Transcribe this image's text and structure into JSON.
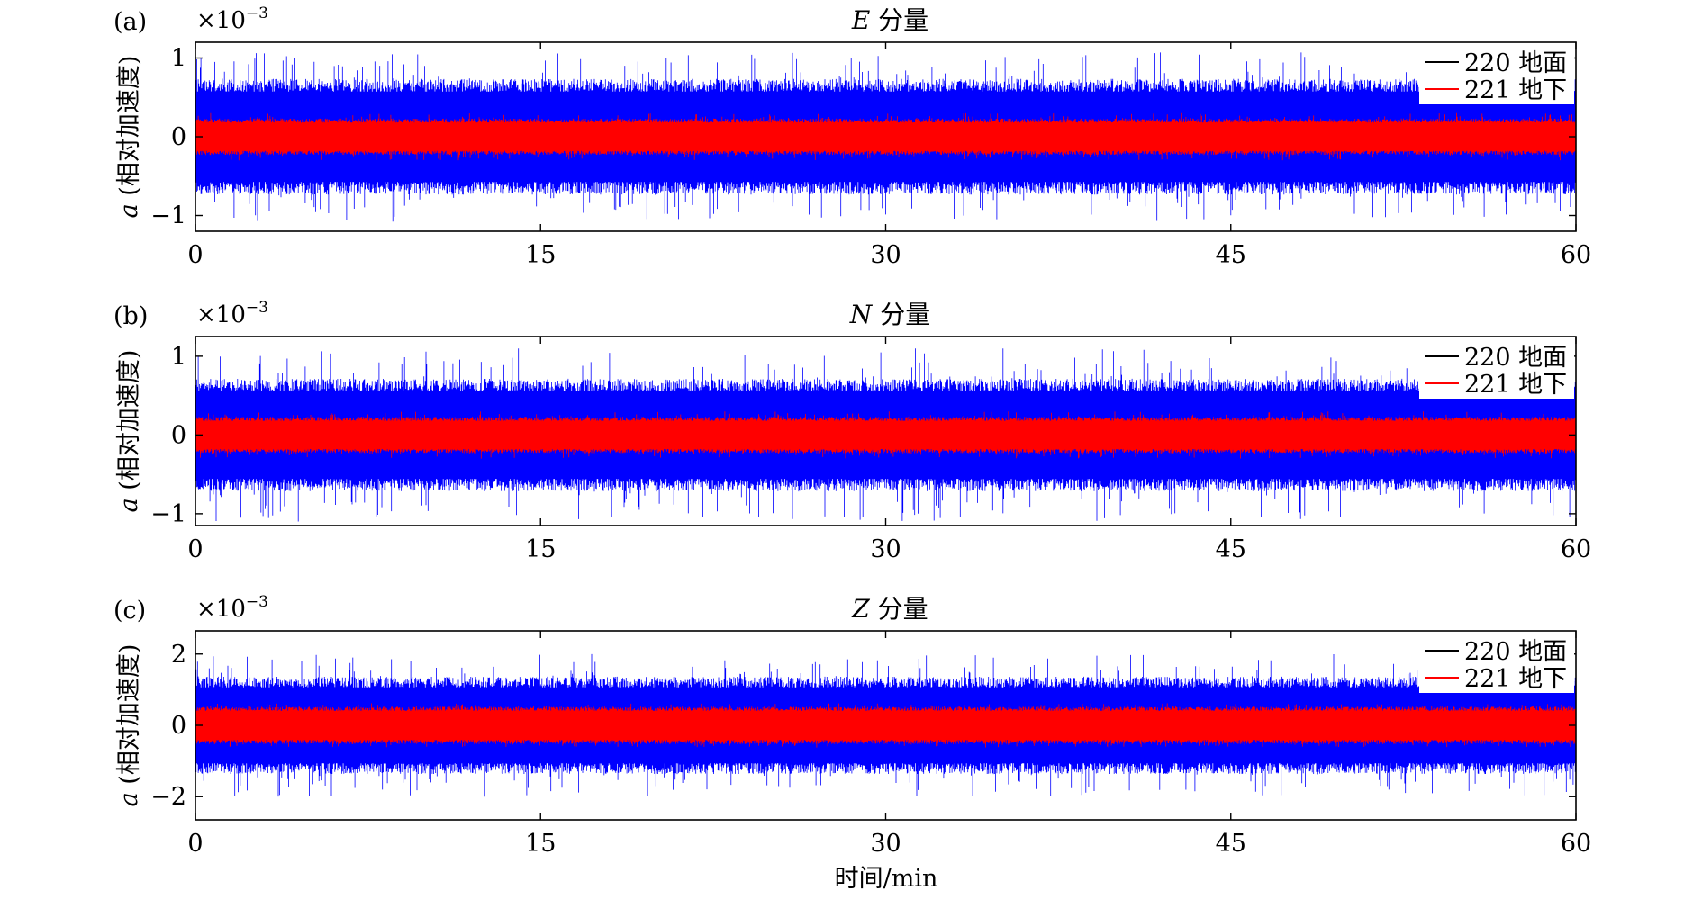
{
  "figure": {
    "xlabel": "时间/min"
  },
  "chart_data": [
    {
      "panel_label": "(a)",
      "title_italic": "E",
      "title_rest": "分量",
      "type": "line",
      "x_range": [
        0,
        60
      ],
      "x_ticks": [
        "0",
        "15",
        "30",
        "45",
        "60"
      ],
      "ylim": [
        -1.2,
        1.2
      ],
      "y_ticks": [
        1,
        0,
        -1
      ],
      "y_tick_labels": [
        "1",
        "0",
        "−1"
      ],
      "y_exponent_label": "×10",
      "y_exponent_power": "−3",
      "ylabel_italic": "a",
      "ylabel_rest": "(相对加速度)",
      "legend_position": "top-right",
      "series": [
        {
          "name": "220 地面",
          "color": "#0000ff",
          "legend_color": "#000000",
          "typical_amplitude": 0.7,
          "peak_amplitude": 1.08
        },
        {
          "name": "221 地下",
          "color": "#ff0000",
          "legend_color": "#ff0000",
          "typical_amplitude": 0.22,
          "peak_amplitude": 0.3
        }
      ]
    },
    {
      "panel_label": "(b)",
      "title_italic": "N",
      "title_rest": "分量",
      "type": "line",
      "x_range": [
        0,
        60
      ],
      "x_ticks": [
        "0",
        "15",
        "30",
        "45",
        "60"
      ],
      "ylim": [
        -1.15,
        1.25
      ],
      "y_ticks": [
        1,
        0,
        -1
      ],
      "y_tick_labels": [
        "1",
        "0",
        "−1"
      ],
      "y_exponent_label": "×10",
      "y_exponent_power": "−3",
      "ylabel_italic": "a",
      "ylabel_rest": "(相对加速度)",
      "legend_position": "top-right",
      "series": [
        {
          "name": "220 地面",
          "color": "#0000ff",
          "legend_color": "#000000",
          "typical_amplitude": 0.68,
          "peak_amplitude": 1.1
        },
        {
          "name": "221 地下",
          "color": "#ff0000",
          "legend_color": "#ff0000",
          "typical_amplitude": 0.22,
          "peak_amplitude": 0.3
        }
      ]
    },
    {
      "panel_label": "(c)",
      "title_italic": "Z",
      "title_rest": "分量",
      "type": "line",
      "x_range": [
        0,
        60
      ],
      "x_ticks": [
        "0",
        "15",
        "30",
        "45",
        "60"
      ],
      "ylim": [
        -2.65,
        2.65
      ],
      "y_ticks": [
        2,
        0,
        -2
      ],
      "y_tick_labels": [
        "2",
        "0",
        "−2"
      ],
      "y_exponent_label": "×10",
      "y_exponent_power": "−3",
      "ylabel_italic": "a",
      "ylabel_rest": "(相对加速度)",
      "legend_position": "top-right",
      "series": [
        {
          "name": "220 地面",
          "color": "#0000ff",
          "legend_color": "#000000",
          "typical_amplitude": 1.3,
          "peak_amplitude": 2.0
        },
        {
          "name": "221 地下",
          "color": "#ff0000",
          "legend_color": "#ff0000",
          "typical_amplitude": 0.5,
          "peak_amplitude": 0.62
        }
      ]
    }
  ]
}
